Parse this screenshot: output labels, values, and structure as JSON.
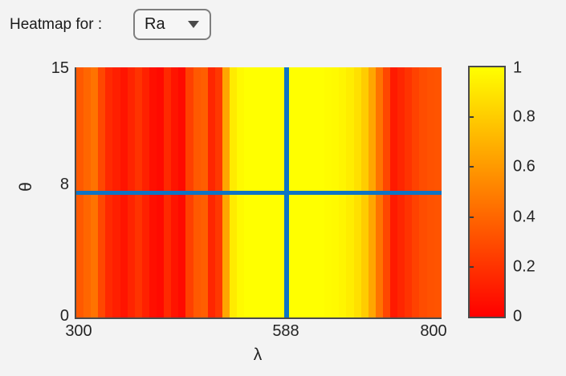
{
  "window": {
    "background": "#f3f3f3"
  },
  "header": {
    "label": "Heatmap for :",
    "dropdown": {
      "selected_option": "Ra",
      "caret_icon": "triangle-down"
    }
  },
  "chart_data": {
    "type": "heatmap",
    "title": "",
    "xlabel": "λ",
    "ylabel": "θ",
    "xlim": [
      300,
      800
    ],
    "ylim": [
      0,
      15
    ],
    "xtick_labels": [
      "300",
      "588",
      "800"
    ],
    "xtick_values": [
      300,
      588,
      800
    ],
    "ytick_labels": [
      "0",
      "8",
      "15"
    ],
    "ytick_values": [
      0,
      8,
      15
    ],
    "grid": false,
    "colormap": {
      "name": "autumn",
      "low_hex": "#ff0000",
      "high_hex": "#ffff00"
    },
    "colorbar": {
      "position": "right",
      "range": [
        0,
        1
      ],
      "tick_labels_top_to_bottom": [
        "1",
        "0.8",
        "0.6",
        "0.4",
        "0.2",
        "0"
      ],
      "tick_values_with_marks": [
        0.2,
        0.4,
        0.6,
        0.8
      ]
    },
    "crosshair": {
      "lambda": 588,
      "theta": 7.5,
      "color": "#0d74c4"
    },
    "heatmap": {
      "note": "value is uniform along theta; vertical stripes as function of lambda",
      "lambda_start": 300,
      "lambda_end": 800,
      "bin_width_nm": 10,
      "values": [
        0.35,
        0.4,
        0.45,
        0.28,
        0.16,
        0.12,
        0.08,
        0.14,
        0.2,
        0.13,
        0.06,
        0.04,
        0.16,
        0.08,
        0.04,
        0.25,
        0.35,
        0.37,
        0.15,
        0.22,
        0.65,
        0.92,
        0.98,
        1.0,
        1.0,
        1.0,
        1.0,
        1.0,
        1.0,
        1.0,
        1.0,
        1.0,
        1.0,
        1.0,
        0.99,
        0.98,
        0.96,
        0.93,
        0.88,
        0.8,
        0.65,
        0.45,
        0.28,
        0.1,
        0.15,
        0.2,
        0.26,
        0.3,
        0.32,
        0.33
      ]
    }
  },
  "colors": {
    "axis_spine": "#4a4a4a",
    "tick_text": "#242424",
    "crosshair_blue": "#0d74c4",
    "cmap_low": "#ff0000",
    "cmap_high": "#ffff00"
  }
}
